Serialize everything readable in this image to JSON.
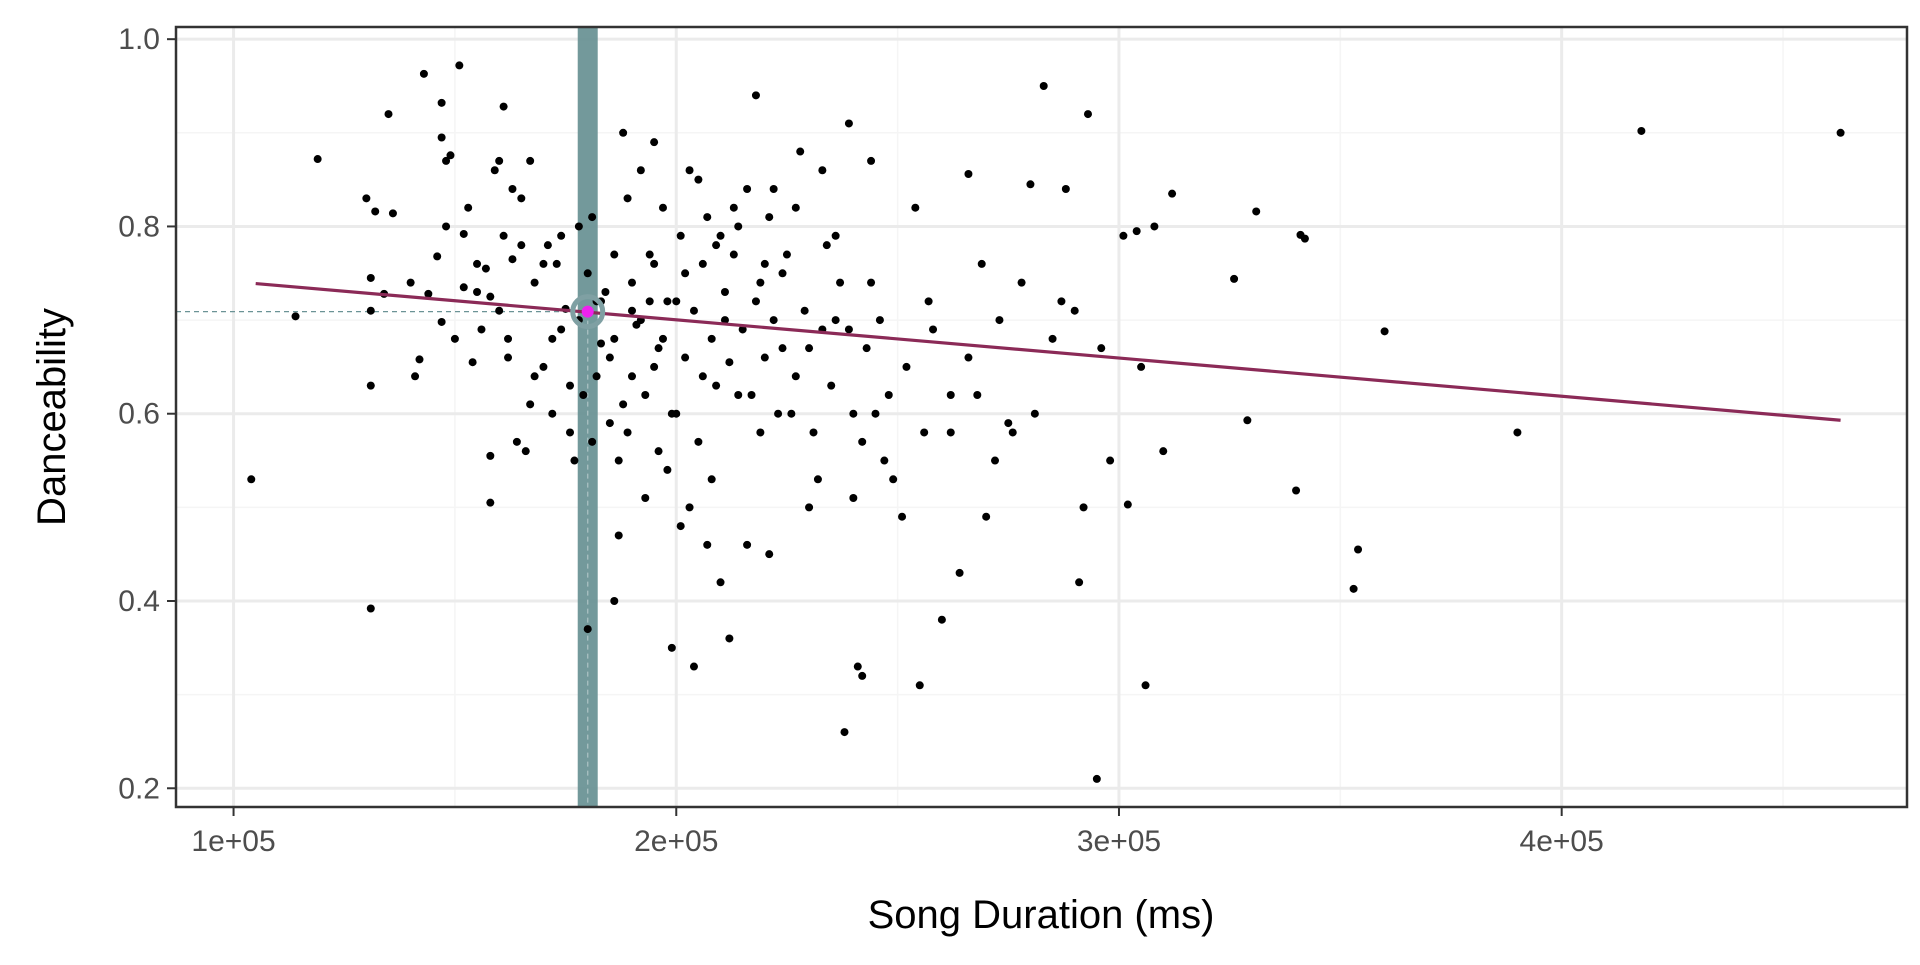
{
  "chart_data": {
    "type": "scatter",
    "xlabel": "Song Duration (ms)",
    "ylabel": "Danceability",
    "xlim": [
      87000,
      478000
    ],
    "ylim": [
      0.18,
      1.013
    ],
    "x_ticks": [
      {
        "value": 100000,
        "label": "1e+05"
      },
      {
        "value": 200000,
        "label": "2e+05"
      },
      {
        "value": 300000,
        "label": "3e+05"
      },
      {
        "value": 400000,
        "label": "4e+05"
      }
    ],
    "x_minor_ticks": [
      150000,
      250000,
      350000,
      450000
    ],
    "y_ticks": [
      {
        "value": 0.2,
        "label": "0.2"
      },
      {
        "value": 0.4,
        "label": "0.4"
      },
      {
        "value": 0.6,
        "label": "0.6"
      },
      {
        "value": 0.8,
        "label": "0.8"
      },
      {
        "value": 1.0,
        "label": "1.0"
      }
    ],
    "y_minor_ticks": [
      0.3,
      0.5,
      0.7,
      0.9
    ],
    "grid": true,
    "points": [
      [
        104000,
        0.53
      ],
      [
        114000,
        0.704
      ],
      [
        119000,
        0.872
      ],
      [
        130000,
        0.83
      ],
      [
        131000,
        0.392
      ],
      [
        131000,
        0.63
      ],
      [
        131000,
        0.745
      ],
      [
        131000,
        0.71
      ],
      [
        132000,
        0.816
      ],
      [
        134000,
        0.728
      ],
      [
        135000,
        0.92
      ],
      [
        136000,
        0.814
      ],
      [
        140000,
        0.74
      ],
      [
        141000,
        0.64
      ],
      [
        142000,
        0.658
      ],
      [
        143000,
        0.963
      ],
      [
        144000,
        0.728
      ],
      [
        146000,
        0.768
      ],
      [
        147000,
        0.698
      ],
      [
        147000,
        0.932
      ],
      [
        147000,
        0.895
      ],
      [
        148000,
        0.87
      ],
      [
        148000,
        0.8
      ],
      [
        149000,
        0.876
      ],
      [
        150000,
        0.68
      ],
      [
        151000,
        0.972
      ],
      [
        152000,
        0.792
      ],
      [
        153000,
        0.82
      ],
      [
        154000,
        0.655
      ],
      [
        155000,
        0.73
      ],
      [
        156000,
        0.69
      ],
      [
        157000,
        0.755
      ],
      [
        158000,
        0.505
      ],
      [
        158000,
        0.555
      ],
      [
        159000,
        0.86
      ],
      [
        160000,
        0.87
      ],
      [
        161000,
        0.928
      ],
      [
        161000,
        0.79
      ],
      [
        162000,
        0.68
      ],
      [
        163000,
        0.765
      ],
      [
        164000,
        0.57
      ],
      [
        165000,
        0.83
      ],
      [
        166000,
        0.56
      ],
      [
        167000,
        0.87
      ],
      [
        168000,
        0.74
      ],
      [
        170000,
        0.65
      ],
      [
        171000,
        0.78
      ],
      [
        172000,
        0.6
      ],
      [
        173000,
        0.76
      ],
      [
        174000,
        0.69
      ],
      [
        175000,
        0.712
      ],
      [
        176000,
        0.58
      ],
      [
        177000,
        0.55
      ],
      [
        178000,
        0.8
      ],
      [
        179000,
        0.62
      ],
      [
        180000,
        0.37
      ],
      [
        180000,
        0.75
      ],
      [
        181000,
        0.57
      ],
      [
        182000,
        0.72
      ],
      [
        185000,
        0.66
      ],
      [
        186000,
        0.4
      ],
      [
        187000,
        0.47
      ],
      [
        188000,
        0.9
      ],
      [
        189000,
        0.58
      ],
      [
        190000,
        0.64
      ],
      [
        192000,
        0.7
      ],
      [
        193000,
        0.51
      ],
      [
        195000,
        0.89
      ],
      [
        195000,
        0.76
      ],
      [
        196000,
        0.56
      ],
      [
        197000,
        0.82
      ],
      [
        198000,
        0.54
      ],
      [
        199000,
        0.35
      ],
      [
        200000,
        0.6
      ],
      [
        201000,
        0.48
      ],
      [
        202000,
        0.75
      ],
      [
        203000,
        0.5
      ],
      [
        204000,
        0.33
      ],
      [
        205000,
        0.85
      ],
      [
        206000,
        0.64
      ],
      [
        207000,
        0.46
      ],
      [
        208000,
        0.53
      ],
      [
        209000,
        0.78
      ],
      [
        210000,
        0.42
      ],
      [
        211000,
        0.7
      ],
      [
        212000,
        0.36
      ],
      [
        213000,
        0.82
      ],
      [
        214000,
        0.62
      ],
      [
        216000,
        0.46
      ],
      [
        218000,
        0.94
      ],
      [
        219000,
        0.58
      ],
      [
        220000,
        0.76
      ],
      [
        221000,
        0.45
      ],
      [
        222000,
        0.84
      ],
      [
        224000,
        0.67
      ],
      [
        226000,
        0.6
      ],
      [
        228000,
        0.88
      ],
      [
        230000,
        0.5
      ],
      [
        232000,
        0.53
      ],
      [
        234000,
        0.78
      ],
      [
        236000,
        0.7
      ],
      [
        238000,
        0.26
      ],
      [
        239000,
        0.91
      ],
      [
        240000,
        0.51
      ],
      [
        241000,
        0.33
      ],
      [
        242000,
        0.32
      ],
      [
        244000,
        0.87
      ],
      [
        245000,
        0.6
      ],
      [
        247000,
        0.55
      ],
      [
        249000,
        0.53
      ],
      [
        251000,
        0.49
      ],
      [
        254000,
        0.82
      ],
      [
        255000,
        0.31
      ],
      [
        257000,
        0.72
      ],
      [
        260000,
        0.38
      ],
      [
        262000,
        0.58
      ],
      [
        264000,
        0.43
      ],
      [
        266000,
        0.856
      ],
      [
        268000,
        0.62
      ],
      [
        270000,
        0.49
      ],
      [
        272000,
        0.55
      ],
      [
        275000,
        0.59
      ],
      [
        278000,
        0.74
      ],
      [
        280000,
        0.845
      ],
      [
        281000,
        0.6
      ],
      [
        283000,
        0.95
      ],
      [
        285000,
        0.68
      ],
      [
        287000,
        0.72
      ],
      [
        288000,
        0.84
      ],
      [
        290000,
        0.71
      ],
      [
        291000,
        0.42
      ],
      [
        292000,
        0.5
      ],
      [
        293000,
        0.92
      ],
      [
        295000,
        0.21
      ],
      [
        296000,
        0.67
      ],
      [
        298000,
        0.55
      ],
      [
        301000,
        0.79
      ],
      [
        302000,
        0.503
      ],
      [
        304000,
        0.795
      ],
      [
        305000,
        0.65
      ],
      [
        306000,
        0.31
      ],
      [
        308000,
        0.8
      ],
      [
        310000,
        0.56
      ],
      [
        312000,
        0.835
      ],
      [
        326000,
        0.744
      ],
      [
        329000,
        0.593
      ],
      [
        331000,
        0.816
      ],
      [
        340000,
        0.518
      ],
      [
        341000,
        0.791
      ],
      [
        342000,
        0.787
      ],
      [
        353000,
        0.413
      ],
      [
        354000,
        0.455
      ],
      [
        360000,
        0.688
      ],
      [
        390000,
        0.58
      ],
      [
        418000,
        0.902
      ],
      [
        463000,
        0.9
      ],
      [
        152000,
        0.735
      ],
      [
        158000,
        0.725
      ],
      [
        162000,
        0.66
      ],
      [
        165000,
        0.78
      ],
      [
        168000,
        0.64
      ],
      [
        170000,
        0.76
      ],
      [
        172000,
        0.68
      ],
      [
        174000,
        0.79
      ],
      [
        176000,
        0.63
      ],
      [
        178000,
        0.7
      ],
      [
        183000,
        0.675
      ],
      [
        184000,
        0.73
      ],
      [
        186000,
        0.68
      ],
      [
        188000,
        0.61
      ],
      [
        190000,
        0.74
      ],
      [
        191000,
        0.695
      ],
      [
        193000,
        0.62
      ],
      [
        194000,
        0.77
      ],
      [
        196000,
        0.67
      ],
      [
        198000,
        0.72
      ],
      [
        199000,
        0.6
      ],
      [
        201000,
        0.79
      ],
      [
        202000,
        0.66
      ],
      [
        204000,
        0.71
      ],
      [
        205000,
        0.57
      ],
      [
        206000,
        0.76
      ],
      [
        208000,
        0.68
      ],
      [
        209000,
        0.63
      ],
      [
        211000,
        0.73
      ],
      [
        212000,
        0.655
      ],
      [
        214000,
        0.8
      ],
      [
        215000,
        0.69
      ],
      [
        217000,
        0.62
      ],
      [
        219000,
        0.74
      ],
      [
        220000,
        0.66
      ],
      [
        222000,
        0.7
      ],
      [
        223000,
        0.6
      ],
      [
        225000,
        0.77
      ],
      [
        227000,
        0.64
      ],
      [
        229000,
        0.71
      ],
      [
        231000,
        0.58
      ],
      [
        233000,
        0.69
      ],
      [
        235000,
        0.63
      ],
      [
        237000,
        0.74
      ],
      [
        240000,
        0.6
      ],
      [
        243000,
        0.67
      ],
      [
        246000,
        0.7
      ],
      [
        248000,
        0.62
      ],
      [
        252000,
        0.65
      ],
      [
        256000,
        0.58
      ],
      [
        258000,
        0.69
      ],
      [
        262000,
        0.62
      ],
      [
        266000,
        0.66
      ],
      [
        269000,
        0.76
      ],
      [
        273000,
        0.7
      ],
      [
        276000,
        0.58
      ],
      [
        186000,
        0.77
      ],
      [
        189000,
        0.83
      ],
      [
        192000,
        0.86
      ],
      [
        194000,
        0.72
      ],
      [
        197000,
        0.68
      ],
      [
        203000,
        0.86
      ],
      [
        207000,
        0.81
      ],
      [
        210000,
        0.79
      ],
      [
        213000,
        0.77
      ],
      [
        216000,
        0.84
      ],
      [
        218000,
        0.72
      ],
      [
        221000,
        0.81
      ],
      [
        224000,
        0.75
      ],
      [
        227000,
        0.82
      ],
      [
        230000,
        0.67
      ],
      [
        233000,
        0.86
      ],
      [
        236000,
        0.79
      ],
      [
        239000,
        0.69
      ],
      [
        242000,
        0.57
      ],
      [
        244000,
        0.74
      ],
      [
        200000,
        0.72
      ],
      [
        195000,
        0.65
      ],
      [
        190000,
        0.71
      ],
      [
        183000,
        0.72
      ],
      [
        185000,
        0.59
      ],
      [
        187000,
        0.55
      ],
      [
        182000,
        0.64
      ],
      [
        181000,
        0.81
      ],
      [
        163000,
        0.84
      ],
      [
        167000,
        0.61
      ],
      [
        160000,
        0.71
      ],
      [
        155000,
        0.76
      ]
    ],
    "fit_line": {
      "x": [
        105000,
        463000
      ],
      "y": [
        0.739,
        0.593
      ]
    },
    "highlight": {
      "x": 180000,
      "y": 0.709
    }
  },
  "colors": {
    "points": "#000000",
    "fit_line": "#8b2a57",
    "band": "#6b9396",
    "highlight_point": "#ee22ee",
    "highlight_ring": "#7fa0a3",
    "grid_major": "#ebebeb",
    "grid_minor": "#f5f5f5",
    "panel_border": "#333333",
    "tick_text": "#4d4d4d"
  }
}
